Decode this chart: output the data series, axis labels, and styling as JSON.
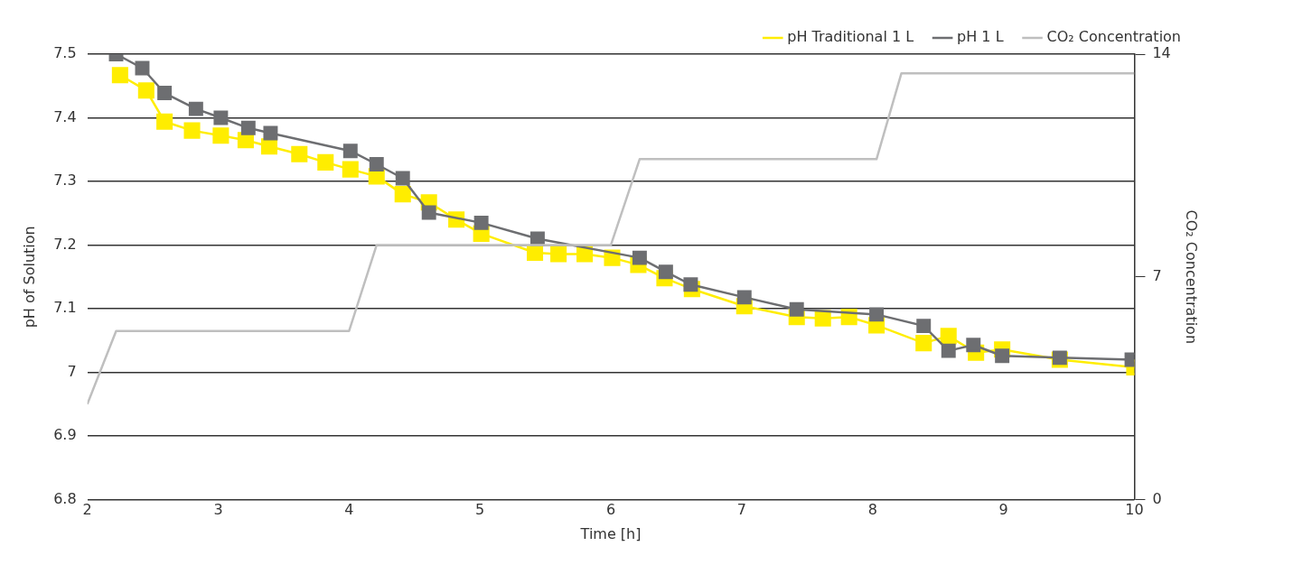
{
  "chart_data": {
    "type": "line",
    "xlabel": "Time [h]",
    "ylabel": "pH of Solution",
    "y2label": "CO₂ Concentration",
    "xlim": [
      2,
      10
    ],
    "xticks": [
      2,
      3,
      4,
      5,
      6,
      7,
      8,
      9,
      10
    ],
    "ylim": [
      6.8,
      7.5
    ],
    "yticks": [
      6.8,
      6.9,
      7,
      7.1,
      7.2,
      7.3,
      7.4,
      7.5
    ],
    "y2lim": [
      0,
      14
    ],
    "y2ticks": [
      0,
      7,
      14
    ],
    "grid": "y",
    "legend": "top right",
    "marker": "square",
    "line_style": "solid",
    "series": [
      {
        "name": "pH Traditional 1 L",
        "color": "#ffed00",
        "x": [
          2.25,
          2.45,
          2.59,
          2.8,
          3.02,
          3.21,
          3.39,
          3.62,
          3.82,
          4.01,
          4.21,
          4.41,
          4.61,
          4.82,
          5.01,
          5.42,
          5.6,
          5.8,
          6.01,
          6.21,
          6.41,
          6.62,
          7.02,
          7.42,
          7.62,
          7.82,
          8.03,
          8.39,
          8.58,
          8.79,
          8.99,
          9.43,
          10
        ],
        "values": [
          7.467,
          7.443,
          7.394,
          7.38,
          7.372,
          7.365,
          7.355,
          7.343,
          7.33,
          7.319,
          7.308,
          7.28,
          7.267,
          7.24,
          7.218,
          7.188,
          7.186,
          7.186,
          7.18,
          7.169,
          7.148,
          7.131,
          7.104,
          7.087,
          7.085,
          7.087,
          7.074,
          7.046,
          7.057,
          7.031,
          7.036,
          7.02,
          7.008
        ]
      },
      {
        "name": "pH 1 L",
        "color": "#6d6e71",
        "x": [
          2.22,
          2.42,
          2.59,
          2.83,
          3.02,
          3.23,
          3.4,
          4.01,
          4.21,
          4.41,
          4.61,
          5.01,
          5.44,
          6.22,
          6.42,
          6.61,
          7.02,
          7.42,
          8.03,
          8.39,
          8.58,
          8.77,
          8.99,
          9.43,
          9.98
        ],
        "values": [
          7.5,
          7.478,
          7.439,
          7.414,
          7.4,
          7.384,
          7.376,
          7.348,
          7.327,
          7.305,
          7.251,
          7.235,
          7.21,
          7.18,
          7.158,
          7.138,
          7.118,
          7.099,
          7.091,
          7.073,
          7.034,
          7.043,
          7.026,
          7.023,
          7.02
        ]
      },
      {
        "name": "CO₂ Concentration",
        "color": "#bfbfbf",
        "axis": "y2",
        "marker": "none",
        "x": [
          2,
          2.22,
          4,
          4.21,
          6,
          6.22,
          8.03,
          8.22,
          10
        ],
        "values": [
          3,
          5.3,
          5.3,
          8,
          8,
          10.7,
          10.7,
          13.4,
          13.4
        ]
      }
    ]
  }
}
